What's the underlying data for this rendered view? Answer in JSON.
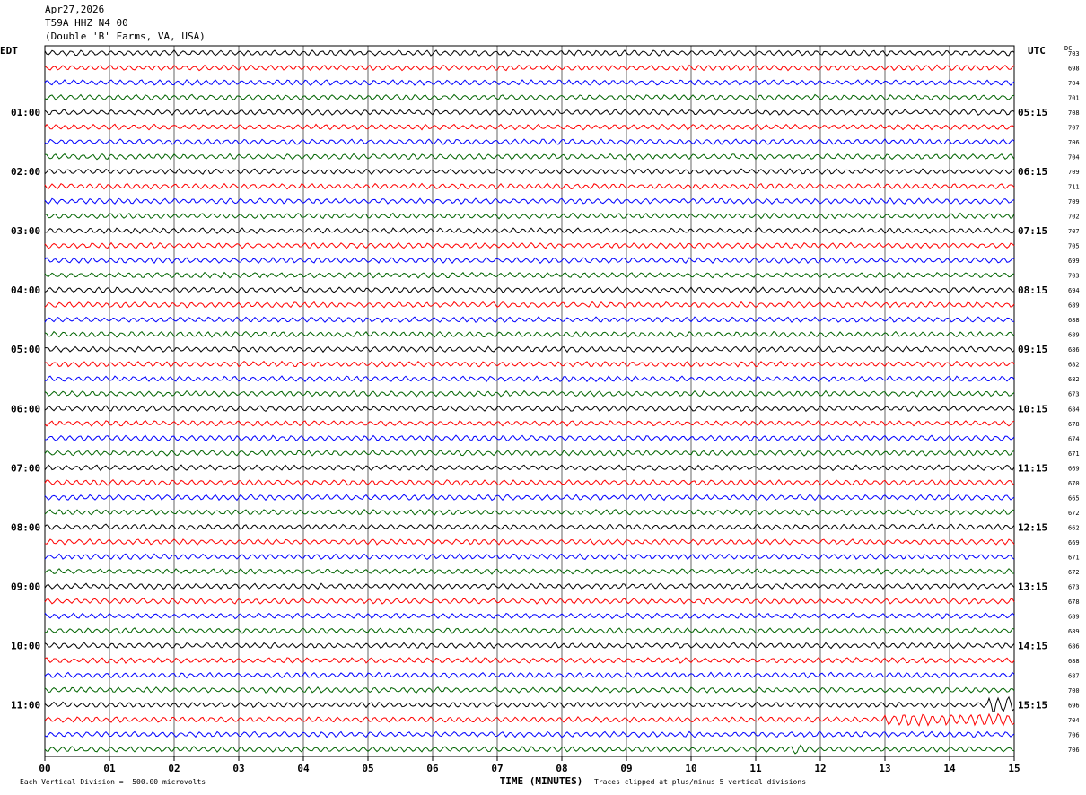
{
  "header": {
    "date": "Apr27,2026",
    "station": "T59A HHZ N4 00",
    "location": "(Double 'B' Farms, VA, USA)"
  },
  "left_timezone": "EDT",
  "right_timezone": "UTC",
  "dc_header": "DC",
  "footer": {
    "scale_note": "Each Vertical Division =  500.00 microvolts",
    "clip_note": "Traces clipped at plus/minus 5 vertical divisions"
  },
  "chart_data": {
    "type": "line",
    "description_kind": "helicorder",
    "xlabel": "TIME (MINUTES)",
    "x_ticks": [
      "00",
      "01",
      "02",
      "03",
      "04",
      "05",
      "06",
      "07",
      "08",
      "09",
      "10",
      "11",
      "12",
      "13",
      "14",
      "15"
    ],
    "xlim": [
      0,
      15
    ],
    "minutes_per_line": 15,
    "trace_colors": [
      "#000000",
      "#ff0000",
      "#0000ff",
      "#006400"
    ],
    "left_hour_labels": [
      "01:00",
      "02:00",
      "03:00",
      "04:00",
      "05:00",
      "06:00",
      "07:00",
      "08:00",
      "09:00",
      "10:00",
      "11:00"
    ],
    "right_hour_labels": [
      "05:15",
      "06:15",
      "07:15",
      "08:15",
      "09:15",
      "10:15",
      "11:15",
      "12:15",
      "13:15",
      "14:15",
      "15:15"
    ],
    "dc_offsets": [
      "703",
      "698",
      "704",
      "701",
      "708",
      "707",
      "706",
      "704",
      "709",
      "711",
      "709",
      "702",
      "707",
      "705",
      "699",
      "703",
      "694",
      "689",
      "688",
      "689",
      "686",
      "682",
      "682",
      "673",
      "684",
      "678",
      "674",
      "671",
      "669",
      "670",
      "665",
      "672",
      "662",
      "669",
      "671",
      "672",
      "673",
      "678",
      "689",
      "689",
      "686",
      "688",
      "687",
      "700",
      "696",
      "704",
      "706",
      "706"
    ]
  }
}
